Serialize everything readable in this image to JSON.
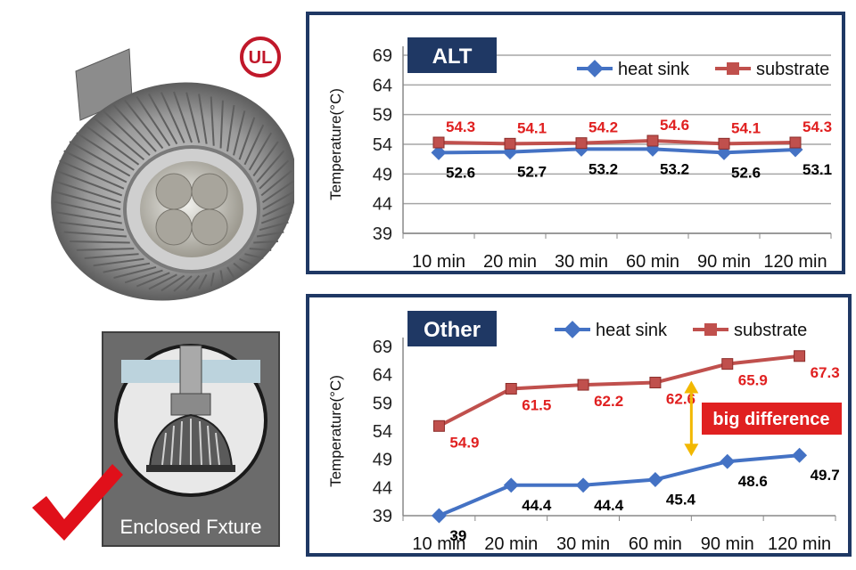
{
  "figure": {
    "ul_mark": "UL",
    "enclosed_fixture_label": "Enclosed Fxture",
    "icons": [
      "led-lamp-image",
      "ul-certification-icon",
      "enclosed-fixture-icon",
      "checkmark-icon"
    ],
    "colors": {
      "heat_sink": "#4472c4",
      "substrate": "#c0504d",
      "panel_border": "#1f3864",
      "title_box": "#1f3864",
      "callout_bg": "#e02020",
      "callout_arrow": "#f2b800",
      "checkmark": "#e0101a",
      "heat_sink_label": "#000000",
      "substrate_label": "#e02020",
      "grid": "#a6a6a6"
    }
  },
  "chart_data": [
    {
      "type": "line",
      "title": "ALT",
      "ylabel": "Temperature(°C)",
      "xlabel": "",
      "categories": [
        "10 min",
        "20 min",
        "30 min",
        "60 min",
        "90 min",
        "120 min"
      ],
      "yticks": [
        39,
        44,
        49,
        54,
        59,
        64,
        69
      ],
      "ylim": [
        39,
        69
      ],
      "grid": true,
      "legend": "top-right",
      "series": [
        {
          "name": "heat sink",
          "values": [
            52.6,
            52.7,
            53.2,
            53.2,
            52.6,
            53.1
          ],
          "labels": [
            "52.6",
            "52.7",
            "53.2",
            "53.2",
            "52.6",
            "53.1"
          ],
          "marker": "diamond",
          "color": "#4472c4"
        },
        {
          "name": "substrate",
          "values": [
            54.3,
            54.1,
            54.2,
            54.6,
            54.1,
            54.3
          ],
          "labels": [
            "54.3",
            "54.1",
            "54.2",
            "54.6",
            "54.1",
            "54.3"
          ],
          "marker": "square",
          "color": "#c0504d"
        }
      ]
    },
    {
      "type": "line",
      "title": "Other",
      "ylabel": "Temperature(°C)",
      "xlabel": "",
      "categories": [
        "10 min",
        "20 min",
        "30 min",
        "60 min",
        "90 min",
        "120 min"
      ],
      "yticks": [
        39,
        44,
        49,
        54,
        59,
        64,
        69
      ],
      "ylim": [
        39,
        69
      ],
      "grid": false,
      "legend": "top-right",
      "series": [
        {
          "name": "heat sink",
          "values": [
            39,
            44.4,
            44.4,
            45.4,
            48.6,
            49.7
          ],
          "labels": [
            "39",
            "44.4",
            "44.4",
            "45.4",
            "48.6",
            "49.7"
          ],
          "marker": "diamond",
          "color": "#4472c4"
        },
        {
          "name": "substrate",
          "values": [
            54.9,
            61.5,
            62.2,
            62.6,
            65.9,
            67.3
          ],
          "labels": [
            "54.9",
            "61.5",
            "62.2",
            "62.6",
            "65.9",
            "67.3"
          ],
          "marker": "square",
          "color": "#c0504d"
        }
      ],
      "annotation": {
        "text": "big difference",
        "between_category": "60 min"
      }
    }
  ]
}
